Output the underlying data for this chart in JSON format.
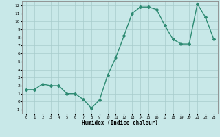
{
  "x": [
    0,
    1,
    2,
    3,
    4,
    5,
    6,
    7,
    8,
    9,
    10,
    11,
    12,
    13,
    14,
    15,
    16,
    17,
    18,
    19,
    20,
    21,
    22,
    23
  ],
  "y": [
    1.5,
    1.5,
    2.2,
    2.0,
    2.0,
    1.0,
    1.0,
    0.3,
    -0.8,
    0.2,
    3.3,
    5.5,
    8.2,
    11.0,
    11.8,
    11.8,
    11.5,
    9.5,
    7.8,
    7.2,
    7.2,
    12.2,
    10.5,
    7.8
  ],
  "color": "#2e8b73",
  "bg_color": "#c8e8e8",
  "grid_color": "#a8cccc",
  "xlabel": "Humidex (Indice chaleur)",
  "ylim": [
    -1.5,
    12.5
  ],
  "xlim": [
    -0.5,
    23.5
  ],
  "yticks": [
    -1,
    0,
    1,
    2,
    3,
    4,
    5,
    6,
    7,
    8,
    9,
    10,
    11,
    12
  ],
  "xticks": [
    0,
    1,
    2,
    3,
    4,
    5,
    6,
    7,
    8,
    9,
    10,
    11,
    12,
    13,
    14,
    15,
    16,
    17,
    18,
    19,
    20,
    21,
    22,
    23
  ],
  "marker": "D",
  "marker_size": 2.0,
  "line_width": 1.0
}
